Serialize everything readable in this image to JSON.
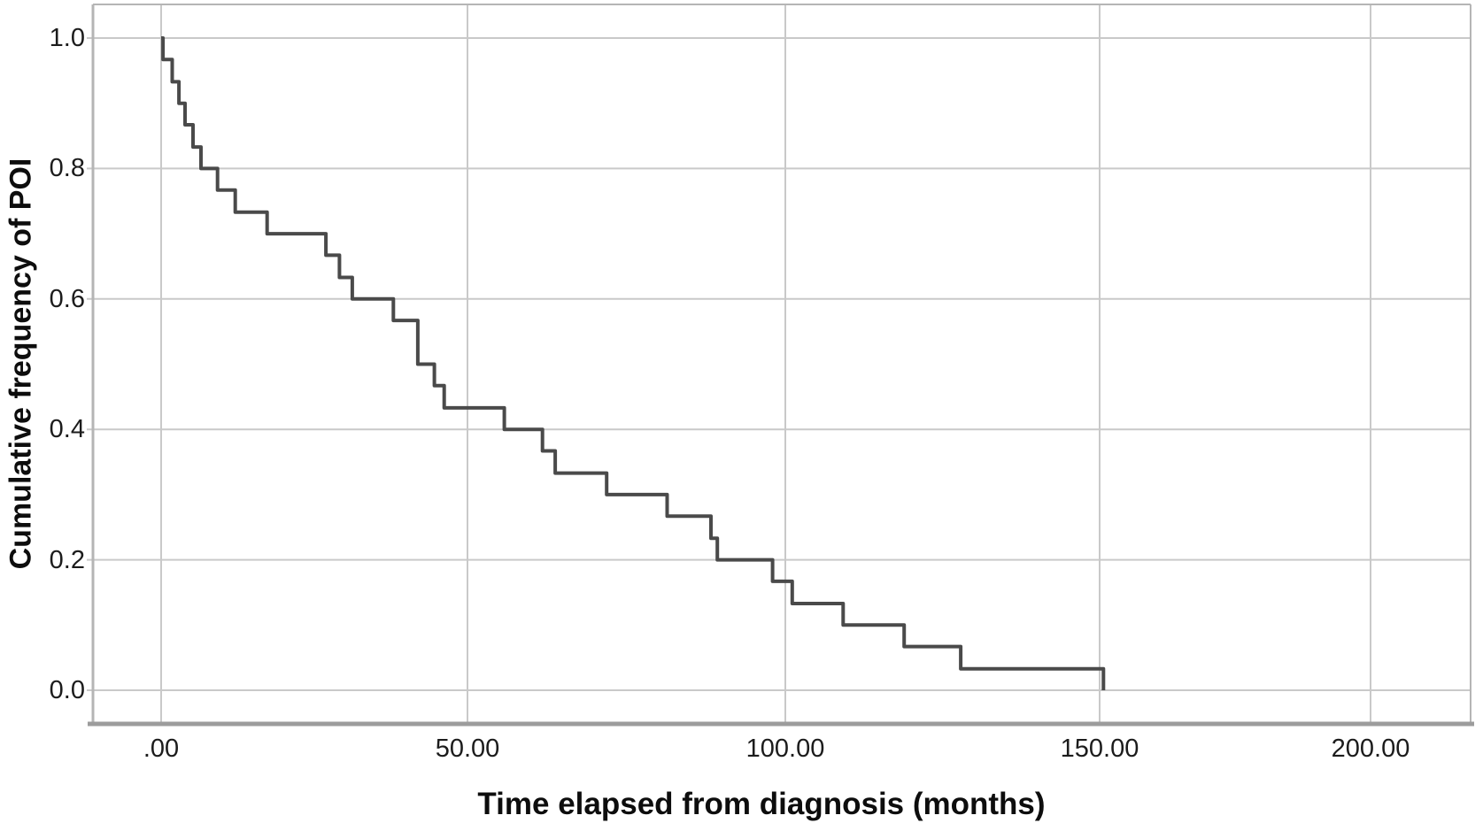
{
  "figure": {
    "background_color": "#ffffff"
  },
  "chart_data": {
    "type": "line",
    "subtype": "step_survival_curve",
    "title": "",
    "xlabel": "Time elapsed from diagnosis (months)",
    "ylabel": "Cumulative frequency of POI",
    "x_ticks": [
      ".00",
      "50.00",
      "100.00",
      "150.00",
      "200.00"
    ],
    "x_tick_values": [
      0,
      50,
      100,
      150,
      200
    ],
    "y_ticks": [
      "0.0",
      "0.2",
      "0.4",
      "0.6",
      "0.8",
      "1.0"
    ],
    "y_tick_values": [
      0.0,
      0.2,
      0.4,
      0.6,
      0.8,
      1.0
    ],
    "xlim": [
      0,
      200
    ],
    "ylim": [
      0.0,
      1.0
    ],
    "grid": true,
    "legend_position": "none",
    "line_color": "#4a4a4a",
    "gridline_color": "#c9c9c9",
    "frame_color": "#b5b5b5",
    "axis_line_color": "#9c9c9c",
    "series": [
      {
        "name": "Cumulative frequency of POI",
        "step": "post",
        "points": [
          [
            0,
            1.0
          ],
          [
            0.3,
            0.967
          ],
          [
            1.8,
            0.933
          ],
          [
            2.9,
            0.9
          ],
          [
            3.9,
            0.867
          ],
          [
            5.2,
            0.833
          ],
          [
            6.5,
            0.8
          ],
          [
            9.2,
            0.767
          ],
          [
            12.1,
            0.733
          ],
          [
            17.3,
            0.7
          ],
          [
            26.9,
            0.667
          ],
          [
            29.1,
            0.633
          ],
          [
            31.2,
            0.6
          ],
          [
            37.9,
            0.567
          ],
          [
            41.9,
            0.5
          ],
          [
            44.6,
            0.467
          ],
          [
            46.2,
            0.433
          ],
          [
            55.8,
            0.4
          ],
          [
            61.8,
            0.367
          ],
          [
            63.8,
            0.333
          ],
          [
            71.9,
            0.3
          ],
          [
            81.4,
            0.267
          ],
          [
            88.3,
            0.233
          ],
          [
            89.3,
            0.2
          ],
          [
            98.0,
            0.167
          ],
          [
            101.1,
            0.133
          ],
          [
            109.2,
            0.1
          ],
          [
            118.9,
            0.067
          ],
          [
            127.9,
            0.033
          ],
          [
            150.7,
            0.0
          ]
        ]
      }
    ]
  }
}
